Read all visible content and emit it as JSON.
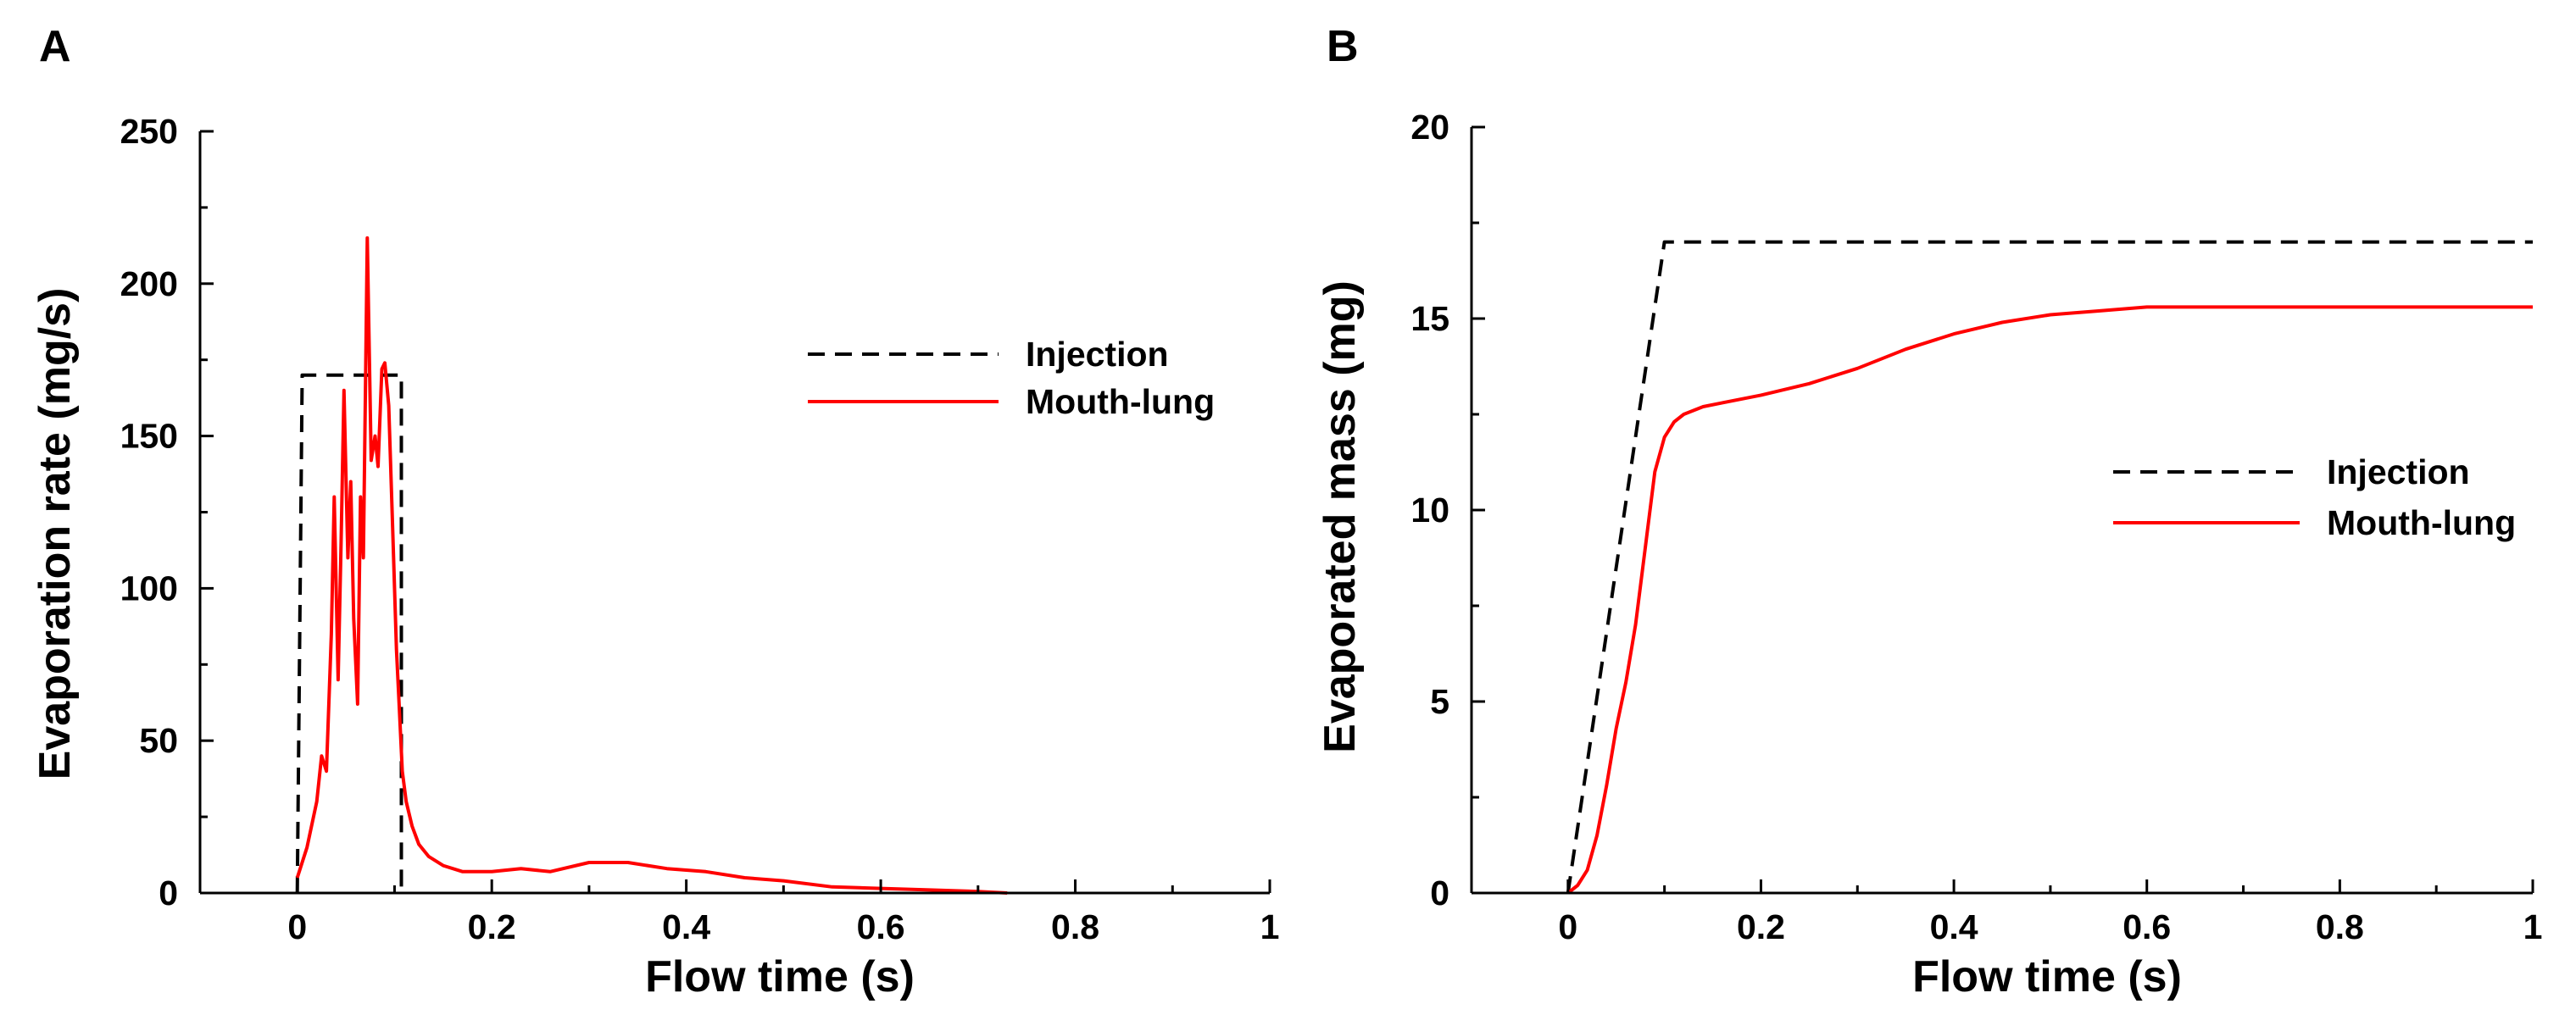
{
  "colors": {
    "injection": "#000000",
    "mouth_lung": "#ff0000",
    "axis": "#000000"
  },
  "chart_data": [
    {
      "panel_label": "A",
      "type": "line",
      "xlabel": "Flow time (s)",
      "ylabel": "Evaporation rate (mg/s)",
      "xlim": [
        -0.1,
        1
      ],
      "ylim": [
        0,
        250
      ],
      "xticks": [
        0,
        0.2,
        0.4,
        0.6,
        0.8,
        1
      ],
      "xtick_labels": [
        "0",
        "0.2",
        "0.4",
        "0.6",
        "0.8",
        "1"
      ],
      "yticks": [
        0,
        50,
        100,
        150,
        200,
        250
      ],
      "ytick_labels": [
        "0",
        "50",
        "100",
        "150",
        "200",
        "250"
      ],
      "grid": false,
      "legend_position": "upper-right",
      "series": [
        {
          "name": "Injection",
          "style": "dashed",
          "color": "#000000",
          "x": [
            0,
            0.005,
            0.1,
            0.107,
            0.107
          ],
          "y": [
            0,
            170,
            170,
            170,
            0
          ]
        },
        {
          "name": "Mouth-lung",
          "style": "solid",
          "color": "#ff0000",
          "x": [
            0,
            0.01,
            0.02,
            0.025,
            0.03,
            0.035,
            0.038,
            0.042,
            0.045,
            0.048,
            0.052,
            0.055,
            0.058,
            0.062,
            0.065,
            0.068,
            0.072,
            0.076,
            0.08,
            0.083,
            0.087,
            0.09,
            0.094,
            0.098,
            0.102,
            0.105,
            0.108,
            0.112,
            0.118,
            0.125,
            0.135,
            0.15,
            0.17,
            0.2,
            0.23,
            0.26,
            0.3,
            0.34,
            0.38,
            0.42,
            0.46,
            0.5,
            0.55,
            0.6,
            0.65,
            0.7,
            0.73
          ],
          "y": [
            5,
            15,
            30,
            45,
            40,
            85,
            130,
            70,
            115,
            165,
            110,
            135,
            90,
            62,
            130,
            110,
            215,
            142,
            150,
            140,
            172,
            174,
            160,
            120,
            80,
            60,
            40,
            30,
            22,
            16,
            12,
            9,
            7,
            7,
            8,
            7,
            10,
            10,
            8,
            7,
            5,
            4,
            2,
            1.5,
            1,
            0.5,
            0
          ]
        }
      ]
    },
    {
      "panel_label": "B",
      "type": "line",
      "xlabel": "Flow time (s)",
      "ylabel": "Evaporated mass (mg)",
      "xlim": [
        -0.1,
        1
      ],
      "ylim": [
        0,
        20
      ],
      "xticks": [
        0,
        0.2,
        0.4,
        0.6,
        0.8,
        1
      ],
      "xtick_labels": [
        "0",
        "0.2",
        "0.4",
        "0.6",
        "0.8",
        "1"
      ],
      "yticks": [
        0,
        5,
        10,
        15,
        20
      ],
      "ytick_labels": [
        "0",
        "5",
        "10",
        "15",
        "20"
      ],
      "grid": false,
      "legend_position": "right",
      "series": [
        {
          "name": "Injection",
          "style": "dashed",
          "color": "#000000",
          "x": [
            0,
            0.1,
            1
          ],
          "y": [
            0,
            17,
            17
          ]
        },
        {
          "name": "Mouth-lung",
          "style": "solid",
          "color": "#ff0000",
          "x": [
            0,
            0.01,
            0.02,
            0.03,
            0.04,
            0.05,
            0.06,
            0.07,
            0.08,
            0.09,
            0.1,
            0.11,
            0.12,
            0.14,
            0.16,
            0.2,
            0.25,
            0.3,
            0.35,
            0.4,
            0.45,
            0.5,
            0.55,
            0.6,
            0.7,
            0.8,
            0.9,
            1
          ],
          "y": [
            0,
            0.2,
            0.6,
            1.5,
            2.8,
            4.3,
            5.5,
            7,
            9,
            11,
            11.9,
            12.3,
            12.5,
            12.7,
            12.8,
            13,
            13.3,
            13.7,
            14.2,
            14.6,
            14.9,
            15.1,
            15.2,
            15.3,
            15.3,
            15.3,
            15.3,
            15.3
          ]
        }
      ]
    }
  ]
}
